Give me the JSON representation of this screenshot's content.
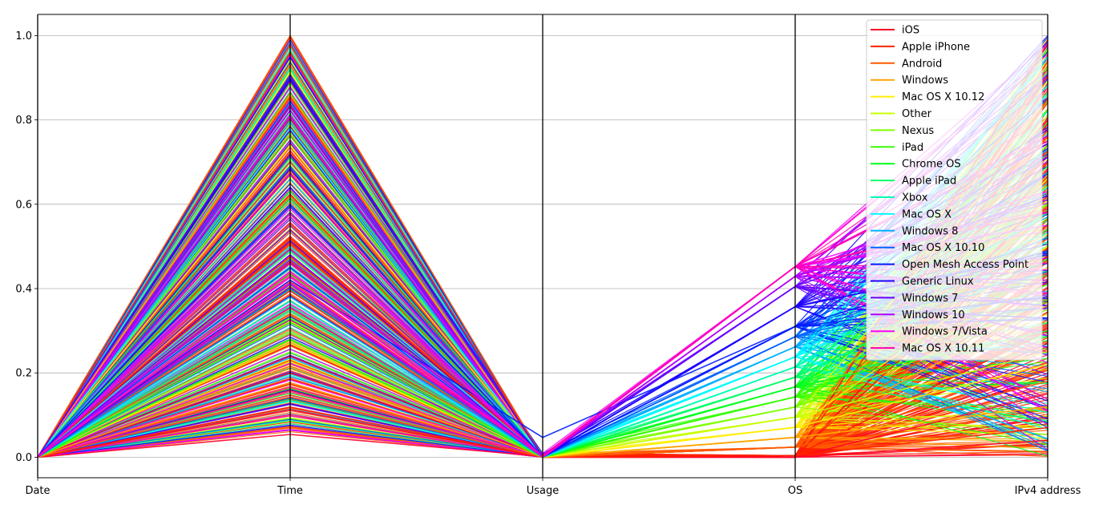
{
  "chart_data": {
    "type": "parallel-coordinates",
    "axes": [
      "Date",
      "Time",
      "Usage",
      "OS",
      "IPv4 address"
    ],
    "ylim": [
      0.0,
      1.0
    ],
    "yticks": [
      "0.0",
      "0.2",
      "0.4",
      "0.6",
      "0.8",
      "1.0"
    ],
    "ytick_values": [
      0.0,
      0.2,
      0.4,
      0.6,
      0.8,
      1.0
    ],
    "grid": true,
    "legend_position": "top-right",
    "series": [
      {
        "name": "iOS",
        "color": "#ff0029",
        "samples": [
          [
            0,
            0.054,
            0.002,
            0.0,
            0.04
          ],
          [
            0,
            0.113,
            0.0,
            0.0,
            0.62
          ],
          [
            0,
            0.2,
            0.002,
            0.0,
            0.98
          ],
          [
            0,
            0.24,
            0.0,
            0.0,
            0.15
          ]
        ]
      },
      {
        "name": "Apple iPhone",
        "color": "#ff2000",
        "samples": [
          [
            0,
            0.119,
            0.001,
            0.004,
            0.85
          ],
          [
            0,
            0.96,
            0.0,
            0.004,
            0.3
          ],
          [
            0,
            0.52,
            0.0,
            0.004,
            0.07
          ],
          [
            0,
            0.7,
            0.001,
            0.004,
            0.55
          ]
        ]
      },
      {
        "name": "Android",
        "color": "#ff5a00",
        "samples": [
          [
            0,
            0.148,
            0.0,
            0.024,
            0.44
          ],
          [
            0,
            1.0,
            0.0,
            0.024,
            0.76
          ],
          [
            0,
            0.62,
            0.001,
            0.024,
            0.18
          ],
          [
            0,
            0.34,
            0.0,
            0.024,
            0.92
          ]
        ]
      },
      {
        "name": "Windows",
        "color": "#ffa500",
        "samples": [
          [
            0,
            0.21,
            0.001,
            0.047,
            0.36
          ],
          [
            0,
            0.86,
            0.0,
            0.047,
            0.12
          ],
          [
            0,
            0.44,
            0.0,
            0.047,
            0.67
          ]
        ]
      },
      {
        "name": "Mac OS X 10.12",
        "color": "#ffee00",
        "samples": [
          [
            0,
            0.27,
            0.001,
            0.071,
            0.5
          ],
          [
            0,
            0.74,
            0.0,
            0.071,
            0.22
          ]
        ]
      },
      {
        "name": "Other",
        "color": "#c8ff00",
        "samples": [
          [
            0,
            0.3,
            0.001,
            0.095,
            0.25
          ],
          [
            0,
            0.66,
            0.0,
            0.095,
            0.81
          ]
        ]
      },
      {
        "name": "Nexus",
        "color": "#7dff00",
        "samples": [
          [
            0,
            0.33,
            0.001,
            0.119,
            0.6
          ],
          [
            0,
            0.77,
            0.0,
            0.119,
            0.35
          ]
        ]
      },
      {
        "name": "iPad",
        "color": "#33ff00",
        "samples": [
          [
            0,
            0.28,
            0.0,
            0.143,
            0.41
          ],
          [
            0,
            0.58,
            0.001,
            0.143,
            0.74
          ]
        ]
      },
      {
        "name": "Chrome OS",
        "color": "#00ff1c",
        "samples": [
          [
            0,
            0.32,
            0.001,
            0.167,
            0.3
          ],
          [
            0,
            0.63,
            0.0,
            0.167,
            0.54
          ]
        ]
      },
      {
        "name": "Apple iPad",
        "color": "#00ff66",
        "samples": [
          [
            0,
            0.35,
            0.0,
            0.19,
            0.47
          ],
          [
            0,
            0.71,
            0.001,
            0.19,
            0.69
          ]
        ]
      },
      {
        "name": "Xbox",
        "color": "#00ffb1",
        "samples": [
          [
            0,
            0.36,
            0.001,
            0.214,
            0.58
          ],
          [
            0,
            0.61,
            0.0,
            0.214,
            0.82
          ]
        ]
      },
      {
        "name": "Mac OS X",
        "color": "#00fcff",
        "samples": [
          [
            0,
            0.37,
            0.001,
            0.238,
            0.86
          ],
          [
            0,
            0.78,
            0.0,
            0.238,
            0.64
          ],
          [
            0,
            0.5,
            0.0,
            0.238,
            0.95
          ]
        ]
      },
      {
        "name": "Windows 8",
        "color": "#00b1ff",
        "samples": [
          [
            0,
            0.38,
            0.0,
            0.262,
            0.57
          ],
          [
            0,
            0.66,
            0.001,
            0.262,
            0.73
          ]
        ]
      },
      {
        "name": "Mac OS X 10.10",
        "color": "#0066ff",
        "samples": [
          [
            0,
            0.4,
            0.001,
            0.286,
            0.52
          ],
          [
            0,
            0.69,
            0.0,
            0.286,
            0.44
          ]
        ]
      },
      {
        "name": "Open Mesh Access Point",
        "color": "#001cff",
        "samples": [
          [
            0,
            0.42,
            0.047,
            0.31,
            0.38
          ],
          [
            0,
            0.6,
            0.001,
            0.31,
            0.49
          ]
        ]
      },
      {
        "name": "Generic Linux",
        "color": "#1c00ff",
        "samples": [
          [
            0,
            0.9,
            0.001,
            0.357,
            0.48
          ],
          [
            0,
            0.64,
            0.0,
            0.357,
            0.33
          ]
        ]
      },
      {
        "name": "Windows 7",
        "color": "#6600ff",
        "samples": [
          [
            0,
            0.905,
            0.0,
            0.405,
            0.62
          ],
          [
            0,
            0.48,
            0.001,
            0.405,
            0.36
          ]
        ]
      },
      {
        "name": "Windows 10",
        "color": "#b100ff",
        "samples": [
          [
            0,
            0.46,
            0.001,
            0.429,
            0.61
          ],
          [
            0,
            0.58,
            0.0,
            0.429,
            0.42
          ]
        ]
      },
      {
        "name": "Windows 7/Vista",
        "color": "#fc00ff",
        "samples": [
          [
            0,
            0.44,
            0.001,
            0.452,
            0.63
          ],
          [
            0,
            0.57,
            0.0,
            0.452,
            0.55
          ]
        ]
      },
      {
        "name": "Mac OS X 10.11",
        "color": "#ff00b1",
        "samples": [
          [
            0,
            0.43,
            0.001,
            0.452,
            0.46
          ],
          [
            0,
            0.55,
            0.0,
            0.452,
            0.58
          ]
        ]
      }
    ]
  }
}
